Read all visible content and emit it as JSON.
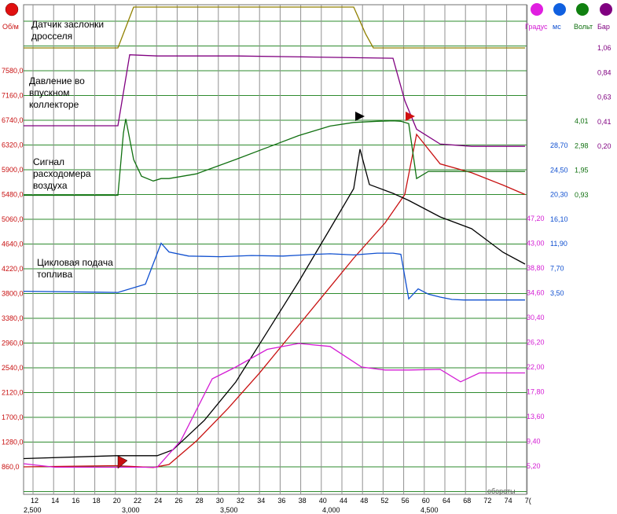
{
  "header": {
    "left_unit": "Об/м",
    "right_units": [
      "Градус",
      "мс",
      "Вольт",
      "Бар"
    ],
    "colors": {
      "rpm": "#e01010",
      "deg": "#e01ee0",
      "ms": "#1060e0",
      "volt": "#108010",
      "bar": "#800080"
    }
  },
  "annotations": [
    {
      "id": "throttle",
      "lines": [
        "Датчик заслонки",
        "дросселя"
      ]
    },
    {
      "id": "pressure",
      "lines": [
        "Давление во",
        "впускном",
        "коллекторе"
      ]
    },
    {
      "id": "airflow",
      "lines": [
        "Сигнал",
        "расходомера",
        "воздуха"
      ]
    },
    {
      "id": "fuel",
      "lines": [
        "Цикловая подача",
        "топлива"
      ]
    }
  ],
  "chart_data": {
    "type": "line",
    "left_axis": {
      "unit": "Об/м",
      "ticks": [
        "7580,0",
        "7160,0",
        "6740,0",
        "6320,0",
        "5900,0",
        "5480,0",
        "5060,0",
        "4640,0",
        "4220,0",
        "3800,0",
        "3380,0",
        "2960,0",
        "2540,0",
        "2120,0",
        "1700,0",
        "1280,0",
        "860,0"
      ]
    },
    "right_axes": {
      "deg": {
        "unit": "Градус",
        "ticks": [
          "47,20",
          "43,00",
          "38,80",
          "34,60",
          "30,40",
          "26,20",
          "22,00",
          "17,80",
          "13,60",
          "9,40",
          "5,20"
        ]
      },
      "ms": {
        "unit": "мс",
        "ticks": [
          "28,70",
          "24,50",
          "20,30",
          "16,10",
          "11,90",
          "7,70",
          "3,50"
        ]
      },
      "volt": {
        "unit": "Вольт",
        "ticks": [
          "4,01",
          "2,98",
          "1,95",
          "0,93"
        ]
      },
      "bar": {
        "unit": "Бар",
        "ticks": [
          "1,06",
          "0,84",
          "0,63",
          "0,41",
          "0,20"
        ]
      }
    },
    "x_axis": {
      "frame_ticks": [
        "12",
        "14",
        "16",
        "18",
        "20",
        "22",
        "24",
        "26",
        "28",
        "30",
        "32",
        "34",
        "36",
        "38",
        "40",
        "44",
        "48",
        "52",
        "56",
        "60",
        "64",
        "68",
        "72",
        "74",
        "7("
      ],
      "time_ticks": [
        "2,500",
        "3,000",
        "3,500",
        "4,000",
        "4,500"
      ],
      "label": "обороты"
    },
    "series": [
      {
        "id": "rpm",
        "color": "#c81010",
        "x": [
          30,
          148,
          195,
          215,
          250,
          290,
          330,
          370,
          410,
          450,
          490,
          515,
          530,
          560,
          600,
          640,
          668
        ],
        "y": [
          860,
          880,
          850,
          900,
          1300,
          1850,
          2450,
          3100,
          3750,
          4400,
          5000,
          5480,
          6500,
          6000,
          5850,
          5640,
          5480
        ]
      },
      {
        "id": "rpm_ref",
        "color": "#000000",
        "x": [
          30,
          148,
          200,
          220,
          260,
          300,
          340,
          380,
          420,
          450,
          458,
          470,
          500,
          520,
          540,
          560,
          600,
          640,
          668
        ],
        "y": [
          1000,
          1050,
          1050,
          1150,
          1650,
          2300,
          3150,
          4000,
          4900,
          5580,
          6250,
          5650,
          5500,
          5380,
          5240,
          5100,
          4900,
          4500,
          4300
        ]
      },
      {
        "id": "deg_trace",
        "color": "#d41cd4",
        "x": [
          30,
          70,
          150,
          200,
          230,
          270,
          300,
          340,
          380,
          420,
          460,
          490,
          520,
          560,
          586,
          610,
          668
        ],
        "y": [
          5.6,
          5.0,
          5.0,
          5.0,
          9.5,
          20,
          22,
          25,
          26,
          25.5,
          22,
          21.5,
          21.5,
          21.6,
          19.5,
          21.0,
          21.0
        ]
      },
      {
        "id": "fuel_ms",
        "color": "#1050d0",
        "x": [
          30,
          150,
          185,
          195,
          205,
          215,
          240,
          280,
          320,
          360,
          400,
          420,
          450,
          480,
          500,
          510,
          520,
          532,
          545,
          560,
          575,
          590,
          630,
          668
        ],
        "y": [
          3.8,
          3.6,
          5.0,
          8.5,
          12.0,
          10.5,
          9.8,
          9.7,
          9.9,
          9.8,
          10.1,
          10.2,
          10.0,
          10.3,
          10.3,
          10.1,
          2.5,
          4.2,
          3.3,
          2.8,
          2.4,
          2.3,
          2.3,
          2.3
        ]
      },
      {
        "id": "airflow_v",
        "color": "#107010",
        "x": [
          30,
          150,
          157,
          160,
          163,
          170,
          180,
          195,
          205,
          215,
          250,
          300,
          340,
          380,
          420,
          450,
          480,
          500,
          510,
          520,
          530,
          545,
          668
        ],
        "y": [
          0.9,
          0.9,
          3.5,
          4.1,
          3.6,
          2.4,
          1.7,
          1.5,
          1.6,
          1.6,
          1.8,
          2.4,
          2.9,
          3.4,
          3.8,
          3.95,
          4.0,
          4.02,
          4.0,
          3.9,
          1.6,
          1.9,
          1.9
        ]
      },
      {
        "id": "throttle",
        "color": "#908000",
        "x": [
          30,
          150,
          170,
          450,
          465,
          475,
          668
        ],
        "y": [
          0.0,
          0.0,
          1.0,
          1.0,
          0.35,
          0.0,
          0.0
        ]
      },
      {
        "id": "pressure_bar",
        "color": "#800080",
        "x": [
          30,
          150,
          165,
          200,
          300,
          400,
          500,
          515,
          530,
          560,
          600,
          668
        ],
        "y": [
          0.38,
          0.38,
          1.0,
          0.99,
          0.99,
          0.98,
          0.97,
          0.6,
          0.35,
          0.22,
          0.2,
          0.2
        ]
      }
    ]
  }
}
